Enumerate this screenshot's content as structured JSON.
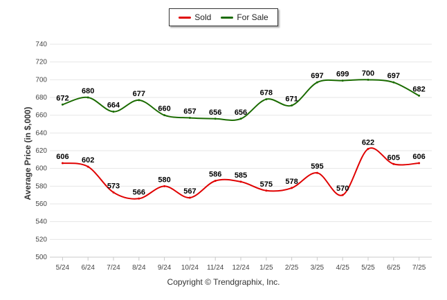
{
  "chart_data": {
    "type": "line",
    "title": "",
    "xlabel": "",
    "ylabel": "Average Price (in $,000)",
    "categories": [
      "5/24",
      "6/24",
      "7/24",
      "8/24",
      "9/24",
      "10/24",
      "11/24",
      "12/24",
      "1/25",
      "2/25",
      "3/25",
      "4/25",
      "5/25",
      "6/25",
      "7/25"
    ],
    "ylim": [
      500,
      740
    ],
    "yticks": [
      500,
      520,
      540,
      560,
      580,
      600,
      620,
      640,
      660,
      680,
      700,
      720,
      740
    ],
    "grid": true,
    "legend": "top-center",
    "series": [
      {
        "name": "Sold",
        "color": "#e00000",
        "values": [
          606,
          602,
          573,
          566,
          580,
          567,
          586,
          585,
          575,
          578,
          595,
          570,
          622,
          605,
          606
        ]
      },
      {
        "name": "For Sale",
        "color": "#1a6b00",
        "values": [
          672,
          680,
          664,
          677,
          660,
          657,
          656,
          656,
          678,
          671,
          697,
          699,
          700,
          697,
          682
        ]
      }
    ]
  },
  "footer": {
    "copyright": "Copyright © Trendgraphix, Inc."
  }
}
